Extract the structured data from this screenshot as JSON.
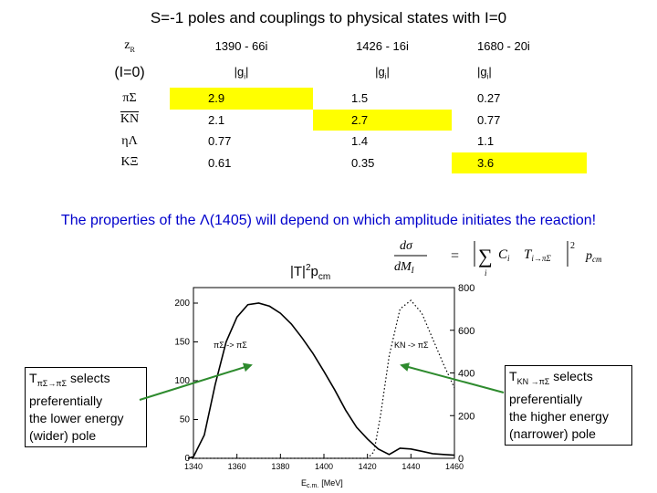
{
  "title": "S=-1 poles and  couplings to physical states with I=0",
  "table": {
    "zr_label": "z",
    "zr_sub": "R",
    "isospin_label": "(I=0)",
    "poles": [
      "1390 - 66i",
      "1426 - 16i",
      "1680 - 20i"
    ],
    "g_header": [
      "|g",
      "|g",
      "|g"
    ],
    "g_sub": "i",
    "g_close": "|",
    "rows": [
      {
        "channel": "πΣ",
        "values": [
          "2.9",
          "1.5",
          "0.27"
        ],
        "highlight": 0
      },
      {
        "channel": "KN",
        "values": [
          "2.1",
          "2.7",
          "0.77"
        ],
        "highlight": 1
      },
      {
        "channel": "ηΛ",
        "values": [
          "0.77",
          "1.4",
          "1.1"
        ],
        "highlight": -1
      },
      {
        "channel": "KΞ",
        "values": [
          "0.61",
          "0.35",
          "3.6"
        ],
        "highlight": 2
      }
    ],
    "highlight_color": "#ffff00"
  },
  "statement": "The properties of the Λ(1405) will depend on which amplitude initiates the reaction!",
  "formula": {
    "lhs_num": "dσ",
    "lhs_den": "dM",
    "lhs_den_sub": "I",
    "eq": "=",
    "sum_sub": "i",
    "coef": "C",
    "coef_sub": "i",
    "amp": "T",
    "amp_sub": "i→πΣ",
    "power": "2",
    "pcm": "p",
    "pcm_sub": "cm"
  },
  "t_label": {
    "main": "|T|",
    "sup": "2",
    "p": "p",
    "sub": "cm"
  },
  "note_left": {
    "line1_a": "T",
    "line1_sub": "πΣ→πΣ",
    "line1_b": " selects",
    "line2": "preferentially",
    "line3": "the lower energy",
    "line4": "(wider) pole"
  },
  "note_right": {
    "line1_a": "T",
    "line1_sub": "KN →πΣ",
    "line1_b": " selects",
    "line2": "preferentially",
    "line3": "the higher energy",
    "line4": "(narrower) pole"
  },
  "arrow_color": "#2e8b2e",
  "chart_data": {
    "type": "line",
    "xlabel": "E",
    "xlabel_sub": "c.m.",
    "xlabel_unit": "[MeV]",
    "xlim": [
      1340,
      1460
    ],
    "x_ticks": [
      "1340",
      "1360",
      "1380",
      "1400",
      "1420",
      "1440",
      "1460"
    ],
    "ylim_left": [
      0,
      220
    ],
    "y_ticks_left": [
      "0",
      "50",
      "100",
      "150",
      "200"
    ],
    "ylim_right": [
      0,
      800
    ],
    "y_ticks_right": [
      "0",
      "200",
      "400",
      "600",
      "800"
    ],
    "series": [
      {
        "name": "πΣ -> πΣ",
        "axis": "left",
        "style": "solid",
        "x": [
          1335,
          1340,
          1345,
          1350,
          1355,
          1360,
          1365,
          1370,
          1375,
          1380,
          1385,
          1390,
          1395,
          1400,
          1405,
          1410,
          1415,
          1420,
          1425,
          1430,
          1435,
          1440,
          1445,
          1450,
          1455,
          1460
        ],
        "y": [
          0,
          2,
          30,
          95,
          150,
          182,
          198,
          200,
          196,
          187,
          173,
          155,
          135,
          112,
          88,
          62,
          40,
          25,
          12,
          5,
          13,
          12,
          9,
          6,
          5,
          4
        ]
      },
      {
        "name": "KN -> πΣ",
        "axis": "right",
        "style": "dotted",
        "x": [
          1335,
          1345,
          1355,
          1365,
          1375,
          1385,
          1395,
          1400,
          1405,
          1410,
          1415,
          1420,
          1423,
          1426,
          1430,
          1435,
          1440,
          1445,
          1450,
          1455,
          1460
        ],
        "y": [
          0,
          0,
          0,
          0,
          0,
          0,
          0,
          0,
          0,
          0,
          0,
          0,
          30,
          200,
          480,
          700,
          740,
          680,
          560,
          440,
          330
        ]
      }
    ]
  }
}
